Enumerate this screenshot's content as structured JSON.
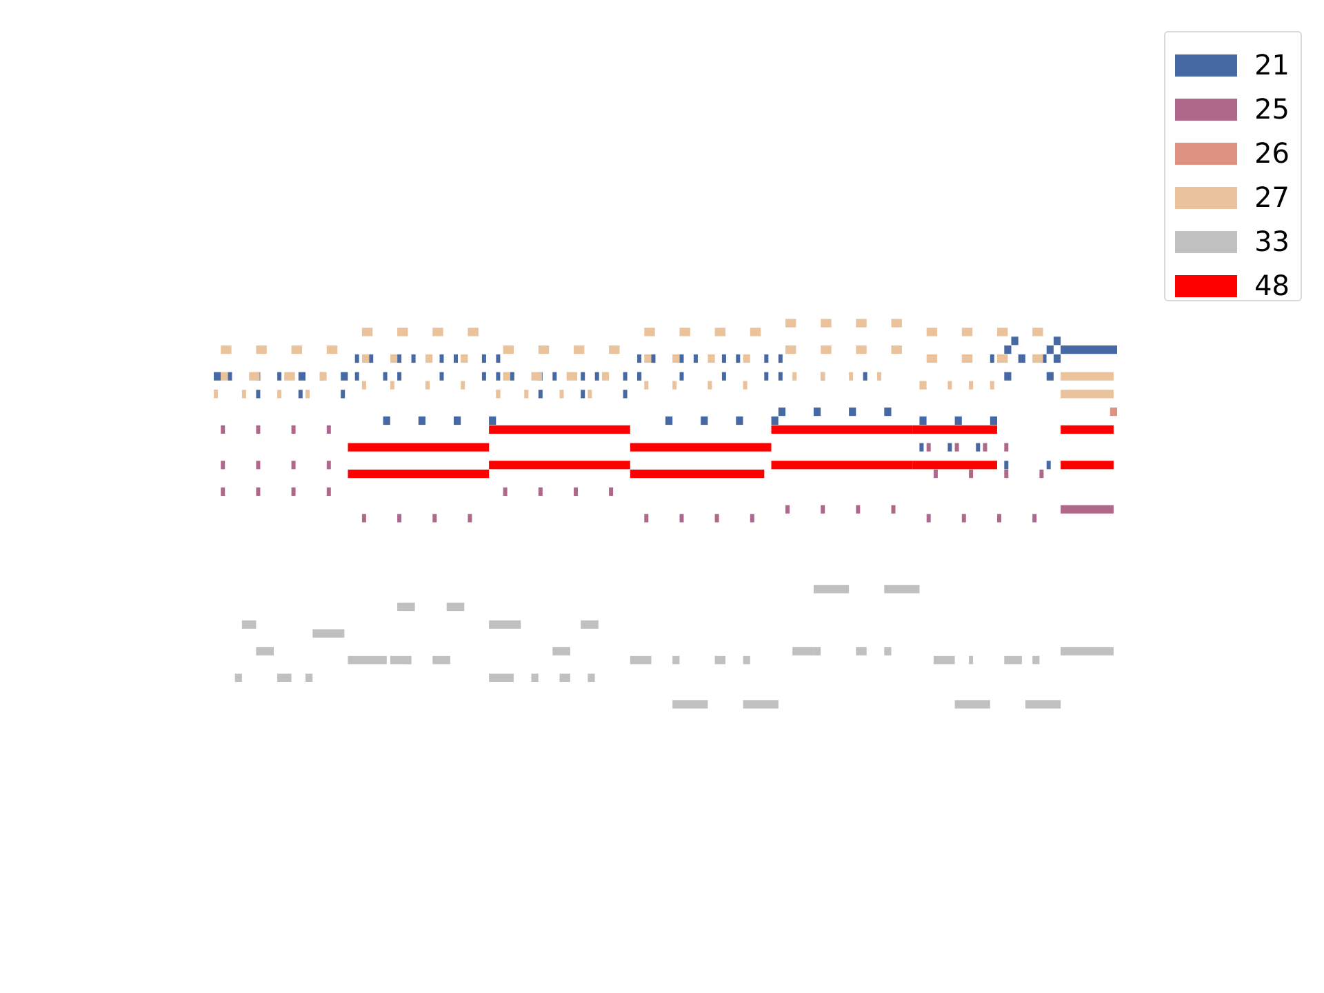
{
  "chart_data": {
    "type": "piano-roll",
    "title": "",
    "xlabel": "",
    "ylabel": "",
    "axes_visible": false,
    "grid": false,
    "legend_position": "top-right",
    "xlim": [
      0,
      128
    ],
    "ylim": [
      30,
      100
    ],
    "series": [
      {
        "name": "21",
        "color": "#4669a3",
        "notes": [
          [
            0,
            1,
            77
          ],
          [
            6,
            0.5,
            77
          ],
          [
            12,
            1,
            77
          ],
          [
            18,
            1,
            77
          ],
          [
            24,
            0.5,
            77
          ],
          [
            0,
            0.5,
            75
          ],
          [
            6,
            0.5,
            75
          ],
          [
            12,
            0.5,
            75
          ],
          [
            18,
            0.5,
            75
          ],
          [
            2,
            0.5,
            77
          ],
          [
            9,
            0.5,
            77
          ],
          [
            15,
            0.5,
            77
          ],
          [
            20,
            0.5,
            79
          ],
          [
            26,
            0.5,
            79
          ],
          [
            32,
            0.5,
            79
          ],
          [
            38,
            0.5,
            79
          ],
          [
            22,
            0.5,
            79
          ],
          [
            28,
            0.5,
            79
          ],
          [
            34,
            0.5,
            79
          ],
          [
            40,
            0.5,
            79
          ],
          [
            20,
            0.5,
            77
          ],
          [
            26,
            0.5,
            77
          ],
          [
            32,
            0.5,
            77
          ],
          [
            38,
            0.5,
            77
          ],
          [
            24,
            1,
            72
          ],
          [
            29,
            1,
            72
          ],
          [
            34,
            1,
            72
          ],
          [
            39,
            1,
            72
          ],
          [
            40,
            0.5,
            77
          ],
          [
            46,
            0.5,
            77
          ],
          [
            52,
            0.5,
            77
          ],
          [
            58,
            0.5,
            77
          ],
          [
            42,
            0.5,
            77
          ],
          [
            48,
            0.5,
            77
          ],
          [
            54,
            0.5,
            77
          ],
          [
            60,
            0.5,
            77
          ],
          [
            40,
            0.5,
            75
          ],
          [
            46,
            0.5,
            75
          ],
          [
            52,
            0.5,
            75
          ],
          [
            58,
            0.5,
            75
          ],
          [
            60,
            0.5,
            79
          ],
          [
            66,
            0.5,
            79
          ],
          [
            72,
            0.5,
            79
          ],
          [
            78,
            0.5,
            79
          ],
          [
            62,
            0.5,
            79
          ],
          [
            68,
            0.5,
            79
          ],
          [
            74,
            0.5,
            79
          ],
          [
            80,
            0.5,
            79
          ],
          [
            60,
            0.5,
            77
          ],
          [
            66,
            0.5,
            77
          ],
          [
            72,
            0.5,
            77
          ],
          [
            78,
            0.5,
            77
          ],
          [
            64,
            1,
            72
          ],
          [
            69,
            1,
            72
          ],
          [
            74,
            1,
            72
          ],
          [
            79,
            1,
            72
          ],
          [
            80,
            0.5,
            77
          ],
          [
            86,
            0.5,
            77
          ],
          [
            92,
            0.5,
            77
          ],
          [
            80,
            1,
            73
          ],
          [
            85,
            1,
            73
          ],
          [
            90,
            1,
            73
          ],
          [
            95,
            1,
            73
          ],
          [
            100,
            1,
            72
          ],
          [
            105,
            1,
            72
          ],
          [
            110,
            1,
            72
          ],
          [
            100,
            0.5,
            69
          ],
          [
            104,
            0.5,
            69
          ],
          [
            108,
            0.5,
            69
          ],
          [
            110,
            0.5,
            79
          ],
          [
            114,
            1,
            79
          ],
          [
            117,
            1,
            79
          ],
          [
            119,
            1,
            79
          ],
          [
            112,
            1,
            80
          ],
          [
            118,
            1,
            80
          ],
          [
            113,
            1,
            81
          ],
          [
            119,
            1,
            81
          ],
          [
            112,
            1,
            77
          ],
          [
            118,
            1,
            77
          ],
          [
            112,
            0.5,
            67
          ],
          [
            118,
            0.5,
            67
          ],
          [
            120,
            8,
            80
          ]
        ]
      },
      {
        "name": "25",
        "color": "#b0688a",
        "notes": [
          [
            1,
            0.5,
            71
          ],
          [
            6,
            0.5,
            71
          ],
          [
            11,
            0.5,
            71
          ],
          [
            16,
            0.5,
            71
          ],
          [
            1,
            0.5,
            67
          ],
          [
            6,
            0.5,
            67
          ],
          [
            11,
            0.5,
            67
          ],
          [
            16,
            0.5,
            67
          ],
          [
            1,
            0.5,
            64
          ],
          [
            6,
            0.5,
            64
          ],
          [
            11,
            0.5,
            64
          ],
          [
            16,
            0.5,
            64
          ],
          [
            21,
            0.5,
            61
          ],
          [
            26,
            0.5,
            61
          ],
          [
            31,
            0.5,
            61
          ],
          [
            36,
            0.5,
            61
          ],
          [
            41,
            0.5,
            64
          ],
          [
            46,
            0.5,
            64
          ],
          [
            51,
            0.5,
            64
          ],
          [
            56,
            0.5,
            64
          ],
          [
            61,
            0.5,
            61
          ],
          [
            66,
            0.5,
            61
          ],
          [
            71,
            0.5,
            61
          ],
          [
            76,
            0.5,
            61
          ],
          [
            81,
            0.5,
            62
          ],
          [
            86,
            0.5,
            62
          ],
          [
            91,
            0.5,
            62
          ],
          [
            96,
            0.5,
            62
          ],
          [
            101,
            0.5,
            61
          ],
          [
            106,
            0.5,
            61
          ],
          [
            111,
            0.5,
            61
          ],
          [
            116,
            0.5,
            61
          ],
          [
            102,
            0.5,
            66
          ],
          [
            107,
            0.5,
            66
          ],
          [
            112,
            0.5,
            66
          ],
          [
            117,
            0.5,
            66
          ],
          [
            101,
            0.5,
            69
          ],
          [
            105,
            0.5,
            69
          ],
          [
            109,
            0.5,
            69
          ],
          [
            112,
            0.5,
            69
          ],
          [
            120,
            7.5,
            62
          ]
        ]
      },
      {
        "name": "26",
        "color": "#de9282",
        "notes": [
          [
            127,
            1,
            73
          ]
        ]
      },
      {
        "name": "27",
        "color": "#eac29c",
        "notes": [
          [
            1,
            1.5,
            80
          ],
          [
            6,
            1.5,
            80
          ],
          [
            11,
            1.5,
            80
          ],
          [
            16,
            1.5,
            80
          ],
          [
            1,
            1,
            77
          ],
          [
            5,
            1.5,
            77
          ],
          [
            10,
            1.5,
            77
          ],
          [
            15,
            1,
            77
          ],
          [
            0,
            0.5,
            75
          ],
          [
            4,
            0.5,
            75
          ],
          [
            9,
            0.5,
            75
          ],
          [
            13,
            0.5,
            75
          ],
          [
            21,
            1.5,
            82
          ],
          [
            26,
            1.5,
            82
          ],
          [
            31,
            1.5,
            82
          ],
          [
            36,
            1.5,
            82
          ],
          [
            21,
            1,
            79
          ],
          [
            25,
            1,
            79
          ],
          [
            30,
            1,
            79
          ],
          [
            35,
            1,
            79
          ],
          [
            21,
            0.5,
            76
          ],
          [
            25,
            0.5,
            76
          ],
          [
            30,
            0.5,
            76
          ],
          [
            35,
            0.5,
            76
          ],
          [
            41,
            1.5,
            80
          ],
          [
            46,
            1.5,
            80
          ],
          [
            51,
            1.5,
            80
          ],
          [
            56,
            1.5,
            80
          ],
          [
            41,
            1,
            77
          ],
          [
            45,
            1.5,
            77
          ],
          [
            50,
            1.5,
            77
          ],
          [
            55,
            1,
            77
          ],
          [
            40,
            0.5,
            75
          ],
          [
            44,
            0.5,
            75
          ],
          [
            49,
            0.5,
            75
          ],
          [
            53,
            0.5,
            75
          ],
          [
            61,
            1.5,
            82
          ],
          [
            66,
            1.5,
            82
          ],
          [
            71,
            1.5,
            82
          ],
          [
            76,
            1.5,
            82
          ],
          [
            61,
            1,
            79
          ],
          [
            65,
            1,
            79
          ],
          [
            70,
            1,
            79
          ],
          [
            75,
            1,
            79
          ],
          [
            61,
            0.5,
            76
          ],
          [
            65,
            0.5,
            76
          ],
          [
            70,
            0.5,
            76
          ],
          [
            75,
            0.5,
            76
          ],
          [
            81,
            1.5,
            83
          ],
          [
            86,
            1.5,
            83
          ],
          [
            91,
            1.5,
            83
          ],
          [
            96,
            1.5,
            83
          ],
          [
            81,
            1.5,
            80
          ],
          [
            86,
            1.5,
            80
          ],
          [
            91,
            1.5,
            80
          ],
          [
            96,
            1.5,
            80
          ],
          [
            82,
            0.5,
            77
          ],
          [
            86,
            0.5,
            77
          ],
          [
            90,
            0.5,
            77
          ],
          [
            94,
            0.5,
            77
          ],
          [
            101,
            1.5,
            82
          ],
          [
            106,
            1.5,
            82
          ],
          [
            111,
            1.5,
            82
          ],
          [
            116,
            1.5,
            82
          ],
          [
            101,
            1.5,
            79
          ],
          [
            106,
            1.5,
            79
          ],
          [
            111,
            1.5,
            79
          ],
          [
            116,
            1.5,
            79
          ],
          [
            100,
            1,
            76
          ],
          [
            104,
            0.5,
            76
          ],
          [
            107,
            0.5,
            76
          ],
          [
            110,
            0.5,
            76
          ],
          [
            120,
            7.5,
            77
          ],
          [
            120,
            7.5,
            75
          ]
        ]
      },
      {
        "name": "33",
        "color": "#c0c0c0",
        "notes": [
          [
            4,
            2,
            49
          ],
          [
            14,
            4.5,
            48
          ],
          [
            6,
            2.5,
            46
          ],
          [
            3,
            1,
            43
          ],
          [
            9,
            2,
            43
          ],
          [
            13,
            1,
            43
          ],
          [
            19,
            5.5,
            45
          ],
          [
            25,
            3,
            45
          ],
          [
            27,
            1,
            45
          ],
          [
            31,
            2.5,
            45
          ],
          [
            26,
            2.5,
            51
          ],
          [
            33,
            2.5,
            51
          ],
          [
            39,
            4.5,
            49
          ],
          [
            52,
            2.5,
            49
          ],
          [
            48,
            2.5,
            46
          ],
          [
            39,
            3.5,
            43
          ],
          [
            45,
            1,
            43
          ],
          [
            49,
            1.5,
            43
          ],
          [
            53,
            1,
            43
          ],
          [
            59,
            3,
            45
          ],
          [
            65,
            1,
            45
          ],
          [
            71,
            1.5,
            45
          ],
          [
            75,
            1,
            45
          ],
          [
            65,
            5,
            40
          ],
          [
            75,
            5,
            40
          ],
          [
            85,
            5,
            53
          ],
          [
            95,
            5,
            53
          ],
          [
            82,
            3,
            46
          ],
          [
            85,
            1,
            46
          ],
          [
            91,
            1.5,
            46
          ],
          [
            95,
            1,
            46
          ],
          [
            102,
            3,
            45
          ],
          [
            107,
            0.5,
            45
          ],
          [
            112,
            2.5,
            45
          ],
          [
            116,
            1,
            45
          ],
          [
            105,
            5,
            40
          ],
          [
            115,
            5,
            40
          ],
          [
            120,
            7.5,
            46
          ]
        ]
      },
      {
        "name": "48",
        "color": "#ff0000",
        "notes": [
          [
            19,
            20,
            69
          ],
          [
            19,
            20,
            66
          ],
          [
            39,
            20,
            71
          ],
          [
            39,
            20,
            67
          ],
          [
            59,
            20,
            69
          ],
          [
            59,
            19,
            66
          ],
          [
            79,
            20,
            71
          ],
          [
            79,
            20,
            67
          ],
          [
            99,
            12,
            71
          ],
          [
            99,
            12,
            67
          ],
          [
            120,
            7.5,
            71
          ],
          [
            120,
            7.5,
            67
          ]
        ]
      }
    ]
  }
}
